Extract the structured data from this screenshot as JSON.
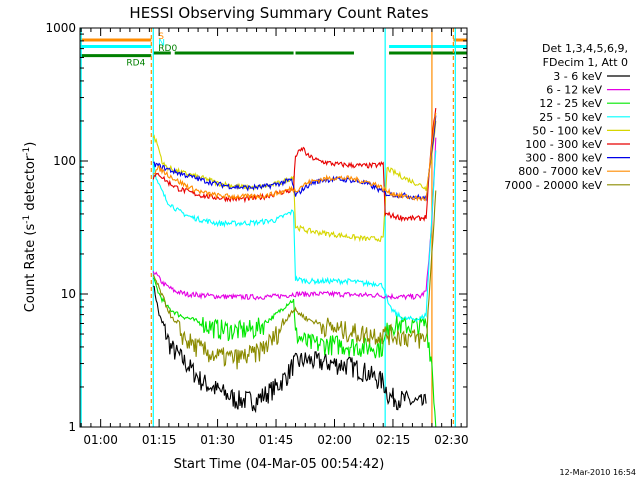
{
  "footer": {
    "timestamp": "12-Mar-2010 16:54"
  },
  "chart_data": {
    "type": "line",
    "title": "HESSI Observing Summary Count Rates",
    "xlabel": "Start Time (04-Mar-05 00:54:42)",
    "ylabel_main": "Count Rate (s",
    "ylabel_sup1": "-1",
    "ylabel_mid": " detector",
    "ylabel_sup2": "-1",
    "ylabel_end": ")",
    "y_scale": "log",
    "ylim": [
      1,
      1000
    ],
    "xlim_min": [
      54.7,
      154
    ],
    "x_tick_labels": [
      "01:00",
      "01:15",
      "01:30",
      "01:45",
      "02:00",
      "02:15",
      "02:30"
    ],
    "x_tick_values_min": [
      60,
      75,
      90,
      105,
      120,
      135,
      150
    ],
    "y_tick_labels": [
      "1",
      "10",
      "100",
      "1000"
    ],
    "y_tick_values": [
      1,
      10,
      100,
      1000
    ],
    "legend_header": [
      "Det 1,3,4,5,6,9,",
      "FDecim 1, Att 0"
    ],
    "legend_placement": "right",
    "series": [
      {
        "name": "3 - 6 keV",
        "color": "#000000",
        "points": [
          [
            73.5,
            12
          ],
          [
            75,
            7
          ],
          [
            78,
            4
          ],
          [
            82,
            3
          ],
          [
            86,
            2.2
          ],
          [
            90,
            1.9
          ],
          [
            95,
            1.6
          ],
          [
            100,
            1.6
          ],
          [
            105,
            2
          ],
          [
            108,
            2.5
          ],
          [
            109.5,
            3
          ],
          [
            112,
            3.2
          ],
          [
            116,
            3.1
          ],
          [
            120,
            3
          ],
          [
            124,
            2.9
          ],
          [
            128,
            2.6
          ],
          [
            131,
            2.3
          ],
          [
            132.5,
            2.2
          ],
          [
            134,
            1.7
          ],
          [
            138,
            1.6
          ],
          [
            142,
            1.5
          ],
          [
            143.5,
            1.5
          ]
        ]
      },
      {
        "name": "6 - 12 keV",
        "color": "#e400e4",
        "points": [
          [
            73.5,
            15
          ],
          [
            76,
            12
          ],
          [
            79,
            10.5
          ],
          [
            82,
            10
          ],
          [
            86,
            9.8
          ],
          [
            90,
            9.6
          ],
          [
            95,
            9.5
          ],
          [
            100,
            9.5
          ],
          [
            105,
            9.6
          ],
          [
            108,
            9.8
          ],
          [
            109.5,
            10
          ],
          [
            112,
            10
          ],
          [
            116,
            10
          ],
          [
            120,
            10
          ],
          [
            124,
            9.9
          ],
          [
            128,
            9.8
          ],
          [
            131,
            9.8
          ],
          [
            132.5,
            9.7
          ],
          [
            134,
            9.6
          ],
          [
            138,
            9.5
          ],
          [
            142,
            9.6
          ],
          [
            143.5,
            10.5
          ],
          [
            145,
            35
          ],
          [
            146,
            150
          ]
        ]
      },
      {
        "name": "12 - 25 keV",
        "color": "#00e800",
        "points": [
          [
            73.5,
            13
          ],
          [
            75,
            10
          ],
          [
            77,
            8
          ],
          [
            80,
            7
          ],
          [
            83,
            6.5
          ],
          [
            86,
            6
          ],
          [
            90,
            5.5
          ],
          [
            95,
            5.3
          ],
          [
            100,
            5.5
          ],
          [
            105,
            7
          ],
          [
            108,
            8.5
          ],
          [
            109.5,
            9
          ],
          [
            110,
            5
          ],
          [
            113,
            4.3
          ],
          [
            116,
            4.2
          ],
          [
            120,
            4.2
          ],
          [
            124,
            4.1
          ],
          [
            128,
            4
          ],
          [
            131,
            4
          ],
          [
            132.5,
            4
          ],
          [
            134,
            6
          ],
          [
            138,
            5.8
          ],
          [
            142,
            5.8
          ],
          [
            143.5,
            6
          ],
          [
            145,
            3
          ],
          [
            146,
            1
          ]
        ]
      },
      {
        "name": "25 - 50 keV",
        "color": "#00ffff",
        "points": [
          [
            73.5,
            100
          ],
          [
            74.5,
            70
          ],
          [
            77,
            50
          ],
          [
            80,
            42
          ],
          [
            83,
            38
          ],
          [
            86,
            36
          ],
          [
            90,
            34
          ],
          [
            95,
            34
          ],
          [
            100,
            34.5
          ],
          [
            105,
            36
          ],
          [
            108,
            40
          ],
          [
            109.5,
            42
          ],
          [
            110,
            13
          ],
          [
            113,
            12.5
          ],
          [
            116,
            12.5
          ],
          [
            120,
            12.5
          ],
          [
            124,
            12.5
          ],
          [
            128,
            12
          ],
          [
            131,
            12
          ],
          [
            132.5,
            11.5
          ],
          [
            134,
            8
          ],
          [
            136,
            7
          ],
          [
            138,
            6.5
          ],
          [
            142,
            6.5
          ],
          [
            143.5,
            7
          ],
          [
            145,
            40
          ],
          [
            146,
            120
          ]
        ]
      },
      {
        "name": "50 - 100 keV",
        "color": "#d6d600",
        "points": [
          [
            73.5,
            155
          ],
          [
            74.5,
            135
          ],
          [
            76,
            95
          ],
          [
            77,
            90
          ],
          [
            79,
            85
          ],
          [
            82,
            80
          ],
          [
            85,
            76
          ],
          [
            88,
            72
          ],
          [
            90,
            68
          ],
          [
            93,
            66
          ],
          [
            96,
            64
          ],
          [
            100,
            63
          ],
          [
            104,
            66
          ],
          [
            107,
            70
          ],
          [
            109,
            75
          ],
          [
            109.5,
            78
          ],
          [
            110,
            32
          ],
          [
            113,
            30
          ],
          [
            116,
            29
          ],
          [
            120,
            28
          ],
          [
            124,
            27
          ],
          [
            128,
            26
          ],
          [
            131,
            26
          ],
          [
            132.5,
            26
          ],
          [
            133.5,
            88
          ],
          [
            136,
            80
          ],
          [
            139,
            72
          ],
          [
            142,
            66
          ],
          [
            143.5,
            62
          ],
          [
            145,
            110
          ],
          [
            146,
            200
          ]
        ]
      },
      {
        "name": "100 - 300 keV",
        "color": "#e80000",
        "points": [
          [
            73.5,
            75
          ],
          [
            75,
            80
          ],
          [
            77,
            70
          ],
          [
            80,
            62
          ],
          [
            83,
            58
          ],
          [
            86,
            55
          ],
          [
            90,
            53
          ],
          [
            94,
            52
          ],
          [
            98,
            52
          ],
          [
            102,
            54
          ],
          [
            106,
            58
          ],
          [
            109,
            60
          ],
          [
            109.5,
            62
          ],
          [
            110,
            110
          ],
          [
            112,
            125
          ],
          [
            113,
            110
          ],
          [
            116,
            100
          ],
          [
            120,
            95
          ],
          [
            124,
            93
          ],
          [
            128,
            92
          ],
          [
            131,
            93
          ],
          [
            132.5,
            95
          ],
          [
            133,
            40
          ],
          [
            136,
            38
          ],
          [
            139,
            37
          ],
          [
            142,
            37
          ],
          [
            143.5,
            38
          ],
          [
            145,
            150
          ],
          [
            146,
            250
          ]
        ]
      },
      {
        "name": "300 - 800 keV",
        "color": "#0000e8",
        "points": [
          [
            73.5,
            95
          ],
          [
            75,
            92
          ],
          [
            78,
            85
          ],
          [
            82,
            78
          ],
          [
            86,
            72
          ],
          [
            90,
            67
          ],
          [
            94,
            64
          ],
          [
            98,
            63
          ],
          [
            102,
            64
          ],
          [
            106,
            68
          ],
          [
            109,
            72
          ],
          [
            110,
            55
          ],
          [
            112,
            62
          ],
          [
            114,
            68
          ],
          [
            117,
            72
          ],
          [
            120,
            73
          ],
          [
            124,
            72
          ],
          [
            128,
            68
          ],
          [
            131,
            62
          ],
          [
            132.5,
            58
          ],
          [
            134,
            56
          ],
          [
            138,
            55
          ],
          [
            142,
            53
          ],
          [
            143.5,
            52
          ],
          [
            145,
            120
          ],
          [
            146,
            220
          ]
        ]
      },
      {
        "name": "800 - 7000 keV",
        "color": "#ff8c00",
        "points": [
          [
            73.5,
            82
          ],
          [
            75,
            88
          ],
          [
            77,
            80
          ],
          [
            80,
            70
          ],
          [
            83,
            63
          ],
          [
            86,
            58
          ],
          [
            90,
            55
          ],
          [
            94,
            54
          ],
          [
            98,
            54
          ],
          [
            102,
            55
          ],
          [
            106,
            58
          ],
          [
            109,
            62
          ],
          [
            110,
            60
          ],
          [
            112,
            66
          ],
          [
            114,
            70
          ],
          [
            117,
            73
          ],
          [
            120,
            75
          ],
          [
            124,
            74
          ],
          [
            128,
            70
          ],
          [
            131,
            66
          ],
          [
            132.5,
            62
          ],
          [
            134,
            58
          ],
          [
            138,
            54
          ],
          [
            142,
            52
          ],
          [
            143.5,
            52
          ],
          [
            145,
            130
          ],
          [
            146,
            230
          ]
        ]
      },
      {
        "name": "7000 - 20000 keV",
        "color": "#8b8b00",
        "points": [
          [
            73.5,
            14
          ],
          [
            75,
            11
          ],
          [
            77,
            8
          ],
          [
            79,
            6
          ],
          [
            82,
            4.5
          ],
          [
            86,
            3.8
          ],
          [
            90,
            3.4
          ],
          [
            95,
            3.3
          ],
          [
            100,
            3.6
          ],
          [
            104,
            4.5
          ],
          [
            107,
            6
          ],
          [
            109,
            7.5
          ],
          [
            110,
            7.5
          ],
          [
            113,
            6.5
          ],
          [
            116,
            6
          ],
          [
            120,
            5.5
          ],
          [
            124,
            5.2
          ],
          [
            128,
            5
          ],
          [
            131,
            5
          ],
          [
            132.5,
            5
          ],
          [
            134,
            5
          ],
          [
            138,
            4.8
          ],
          [
            142,
            4.6
          ],
          [
            143.5,
            4.5
          ],
          [
            145,
            20
          ],
          [
            146,
            60
          ]
        ]
      }
    ],
    "vertical_markers": [
      {
        "x_min": 55,
        "color": "#00ffff",
        "style": "solid"
      },
      {
        "x_min": 73,
        "color": "#ff8c00",
        "style": "dashed"
      },
      {
        "x_min": 73.5,
        "color": "#00ffff",
        "style": "solid"
      },
      {
        "x_min": 133,
        "color": "#00ffff",
        "style": "solid"
      },
      {
        "x_min": 145,
        "color": "#ff8c00",
        "style": "solid"
      },
      {
        "x_min": 150.5,
        "color": "#ff8c00",
        "style": "dashed"
      },
      {
        "x_min": 151,
        "color": "#00ffff",
        "style": "solid"
      }
    ],
    "flag_bars": [
      {
        "label": "S",
        "color": "#ff8c00",
        "level": 1,
        "segments": [
          [
            54.7,
            73
          ],
          [
            150.5,
            154
          ]
        ]
      },
      {
        "label": "N",
        "color": "#00ffff",
        "level": 2,
        "segments": [
          [
            54.7,
            73
          ],
          [
            134,
            154
          ]
        ]
      },
      {
        "label": "RD0",
        "color": "#008000",
        "level": 3,
        "segments": [
          [
            73.5,
            78
          ],
          [
            79,
            109.5
          ],
          [
            110,
            125
          ],
          [
            134,
            154
          ]
        ]
      },
      {
        "label": "RD4",
        "color": "#008000",
        "level": 3.4,
        "segments": [
          [
            54.7,
            73
          ]
        ]
      }
    ]
  }
}
